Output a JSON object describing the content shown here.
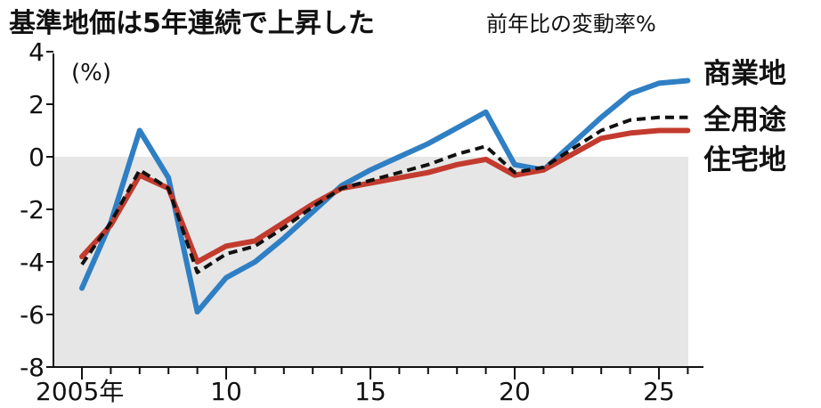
{
  "chart_data": {
    "type": "line",
    "title": "基準地価は5年連続で上昇した",
    "subtitle": "前年比の変動率%",
    "unit_label": "(%)",
    "ylim": [
      -8,
      4
    ],
    "yticks": [
      4,
      2,
      0,
      -2,
      -4,
      -6,
      -8
    ],
    "ytick_labels": [
      "4",
      "2",
      "0",
      "-2",
      "-4",
      "-6",
      "-8"
    ],
    "xlim": [
      2005,
      2026
    ],
    "xticks": [
      2005,
      2010,
      2015,
      2020,
      2025
    ],
    "xtick_labels": [
      "2005年",
      "10",
      "15",
      "20",
      "25"
    ],
    "negative_region_shaded": true,
    "shade_color": "#e6e6e6",
    "x": [
      2005,
      2006,
      2007,
      2008,
      2009,
      2010,
      2011,
      2012,
      2013,
      2014,
      2015,
      2016,
      2017,
      2018,
      2019,
      2020,
      2021,
      2022,
      2023,
      2024,
      2025,
      2026
    ],
    "series": [
      {
        "name": "商業地",
        "color": "#2f7fc4",
        "style": "solid",
        "values": [
          -5.0,
          -2.5,
          1.0,
          -0.8,
          -5.9,
          -4.6,
          -4.0,
          -3.1,
          -2.1,
          -1.1,
          -0.5,
          0.0,
          0.5,
          1.1,
          1.7,
          -0.3,
          -0.5,
          0.5,
          1.5,
          2.4,
          2.8,
          2.9
        ]
      },
      {
        "name": "全用途",
        "color": "#111111",
        "style": "dashed",
        "values": [
          -4.1,
          -2.5,
          -0.5,
          -1.2,
          -4.4,
          -3.7,
          -3.4,
          -2.7,
          -1.9,
          -1.2,
          -0.9,
          -0.6,
          -0.3,
          0.1,
          0.4,
          -0.6,
          -0.4,
          0.3,
          1.0,
          1.4,
          1.5,
          1.5
        ]
      },
      {
        "name": "住宅地",
        "color": "#c23b2e",
        "style": "solid",
        "values": [
          -3.8,
          -2.6,
          -0.7,
          -1.2,
          -4.0,
          -3.4,
          -3.2,
          -2.5,
          -1.8,
          -1.2,
          -1.0,
          -0.8,
          -0.6,
          -0.3,
          -0.1,
          -0.7,
          -0.5,
          0.1,
          0.7,
          0.9,
          1.0,
          1.0
        ]
      }
    ],
    "legend_placement": "right"
  }
}
